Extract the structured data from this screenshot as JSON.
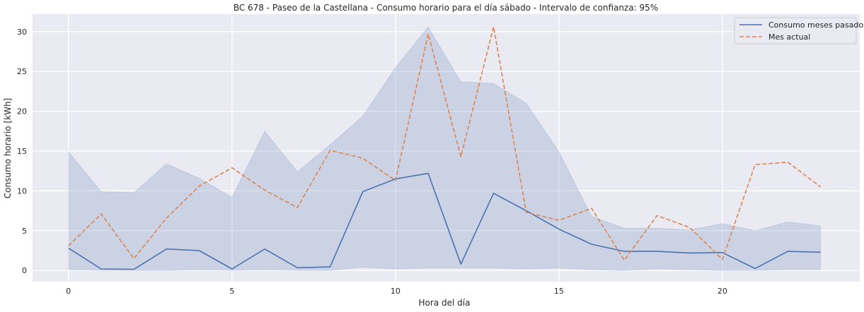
{
  "chart_data": {
    "type": "line",
    "title": "BC 678 - Paseo de la Castellana - Consumo horario para el día sábado - Intervalo de confianza: 95%",
    "xlabel": "Hora del día",
    "ylabel": "Consumo horario [kWh]",
    "xlim": [
      -1.1,
      24.2
    ],
    "ylim": [
      -1.4,
      32.2
    ],
    "xticks": [
      0,
      5,
      10,
      15,
      20
    ],
    "yticks": [
      0,
      5,
      10,
      15,
      20,
      25,
      30
    ],
    "grid": true,
    "legend_position": "top-right",
    "x": [
      0,
      1,
      2,
      3,
      4,
      5,
      6,
      7,
      8,
      9,
      10,
      11,
      12,
      13,
      14,
      15,
      16,
      17,
      18,
      19,
      20,
      21,
      22,
      23
    ],
    "series": [
      {
        "name": "Consumo meses pasados",
        "style": "solid",
        "color": "#4c72b0",
        "values": [
          2.8,
          0.2,
          0.15,
          2.7,
          2.5,
          0.2,
          2.7,
          0.35,
          0.45,
          9.9,
          11.5,
          12.2,
          0.8,
          9.7,
          7.5,
          5.2,
          3.3,
          2.4,
          2.4,
          2.2,
          2.25,
          0.25,
          2.4,
          2.3
        ],
        "ci_upper": [
          14.9,
          9.9,
          9.8,
          13.4,
          11.6,
          9.2,
          17.5,
          12.4,
          15.8,
          19.4,
          25.5,
          30.6,
          23.7,
          23.5,
          21.0,
          14.9,
          6.8,
          5.3,
          5.3,
          5.1,
          5.9,
          5.0,
          6.1,
          5.6
        ],
        "ci_lower": [
          0.1,
          0.0,
          0.0,
          0.0,
          0.1,
          0.0,
          0.1,
          0.0,
          0.0,
          0.4,
          0.2,
          0.3,
          0.3,
          0.3,
          0.2,
          0.3,
          0.1,
          0.0,
          0.2,
          0.1,
          0.0,
          0.0,
          0.1,
          0.1
        ]
      },
      {
        "name": "Mes actual",
        "style": "dashed",
        "color": "#dd8452",
        "values": [
          3.1,
          7.1,
          1.5,
          6.6,
          10.6,
          12.9,
          10.1,
          7.9,
          15.1,
          14.1,
          11.3,
          29.7,
          14.3,
          30.6,
          7.3,
          6.3,
          7.8,
          1.3,
          6.9,
          5.4,
          1.4,
          13.3,
          13.6,
          10.5
        ]
      }
    ]
  }
}
